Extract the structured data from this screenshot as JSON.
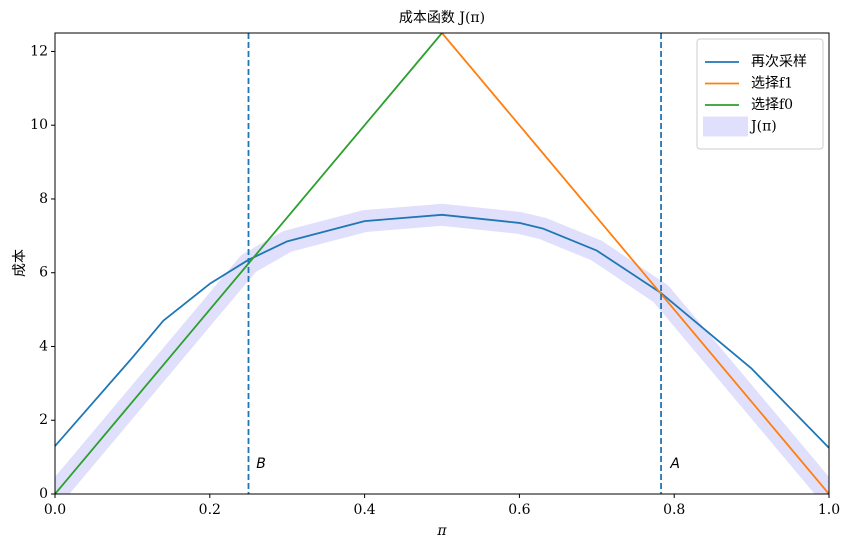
{
  "chart_data": {
    "type": "line",
    "title": "成本函数 J(π)",
    "xlabel": "π",
    "ylabel": "成本",
    "x": [
      0,
      0.05,
      0.1,
      0.14,
      0.2,
      0.25,
      0.3,
      0.4,
      0.5,
      0.6,
      0.63,
      0.7,
      0.783,
      0.8,
      0.9,
      1.0
    ],
    "series": [
      {
        "name": "再次采样",
        "color": "#1f77b4",
        "values": [
          1.3,
          2.5,
          3.7,
          4.7,
          5.7,
          6.35,
          6.85,
          7.4,
          7.57,
          7.35,
          7.2,
          6.6,
          5.45,
          5.15,
          3.4,
          1.25
        ]
      },
      {
        "name": "选择f1",
        "color": "#ff7f0e",
        "values": [
          null,
          null,
          null,
          null,
          null,
          null,
          null,
          null,
          12.5,
          10,
          9.25,
          7.5,
          5.425,
          5,
          2.5,
          0
        ]
      },
      {
        "name": "选择f0",
        "color": "#2ca02c",
        "values": [
          0,
          1.25,
          2.5,
          3.5,
          5,
          6.25,
          7.5,
          10,
          12.5,
          null,
          null,
          null,
          null,
          null,
          null,
          null
        ]
      },
      {
        "name": "J(π)",
        "color": "#e0e0fc",
        "band": true,
        "values": [
          0,
          1.25,
          2.5,
          3.5,
          5,
          6.25,
          6.85,
          7.4,
          7.57,
          7.35,
          7.2,
          6.6,
          5.425,
          5,
          2.5,
          0
        ]
      }
    ],
    "vlines": [
      {
        "x": 0.25,
        "color": "#1f77b4"
      },
      {
        "x": 0.783,
        "color": "#1f77b4"
      }
    ],
    "annotations": [
      {
        "text": "B",
        "x": 0.26,
        "y": 0.7
      },
      {
        "text": "A",
        "x": 0.795,
        "y": 0.7
      }
    ],
    "xlim": [
      0,
      1
    ],
    "ylim": [
      0,
      12.5
    ],
    "xticks": [
      {
        "value": 0,
        "label": "0.0"
      },
      {
        "value": 0.2,
        "label": "0.2"
      },
      {
        "value": 0.4,
        "label": "0.4"
      },
      {
        "value": 0.6,
        "label": "0.6"
      },
      {
        "value": 0.8,
        "label": "0.8"
      },
      {
        "value": 1,
        "label": "1.0"
      }
    ],
    "yticks": [
      0,
      2,
      4,
      6,
      8,
      10,
      12
    ],
    "legend": "upper right"
  }
}
